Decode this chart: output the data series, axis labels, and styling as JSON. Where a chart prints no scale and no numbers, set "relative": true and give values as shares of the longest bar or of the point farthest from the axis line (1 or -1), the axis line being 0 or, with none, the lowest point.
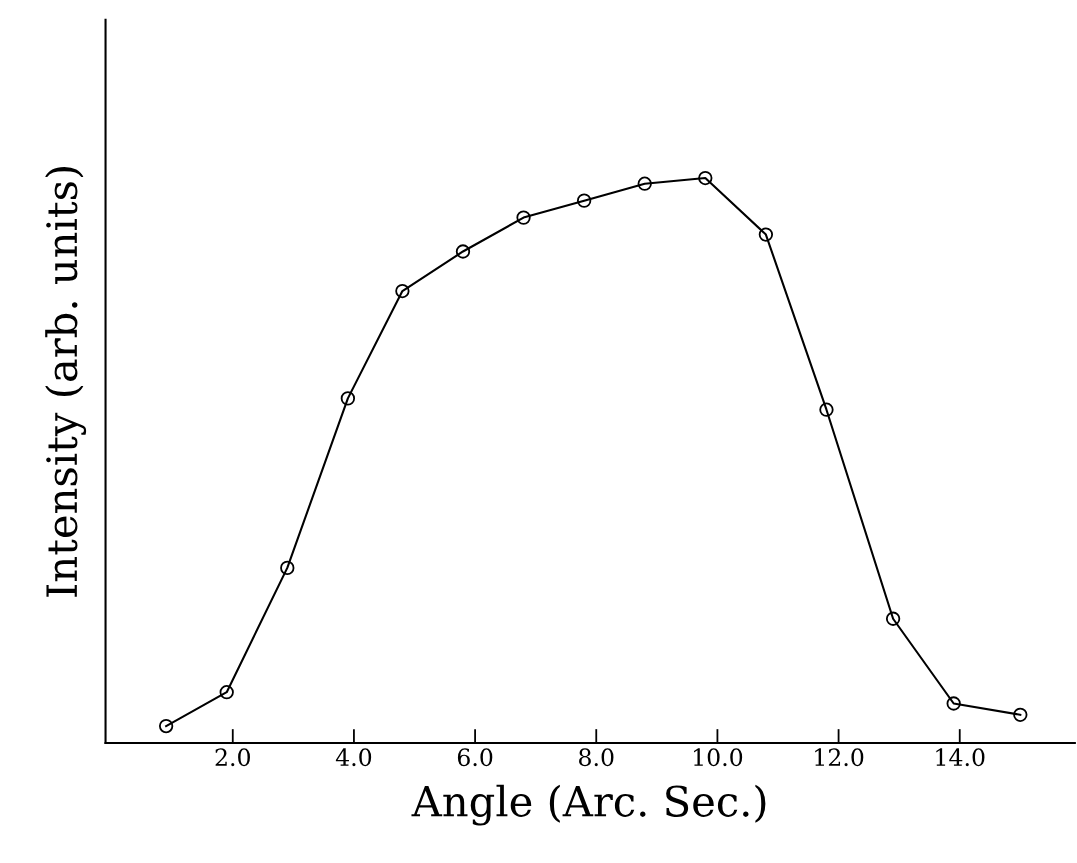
{
  "chart_data": {
    "type": "line",
    "relative": true,
    "xlabel": "Angle (Arc. Sec.)",
    "ylabel": "Intensity (arb. units)",
    "x": [
      0.9,
      1.9,
      2.9,
      3.9,
      4.8,
      5.8,
      6.8,
      7.8,
      8.8,
      9.8,
      10.8,
      11.8,
      12.9,
      13.9,
      15.0
    ],
    "series": [
      {
        "color": "#000000",
        "values": [
          0.03,
          0.09,
          0.31,
          0.61,
          0.8,
          0.87,
          0.93,
          0.96,
          0.99,
          1.0,
          0.9,
          0.59,
          0.22,
          0.07,
          0.05
        ]
      }
    ],
    "xlim": [
      -0.1,
      15.9
    ],
    "xticks": [
      {
        "value": 2,
        "label": "2.0"
      },
      {
        "value": 4,
        "label": "4.0"
      },
      {
        "value": 6,
        "label": "6.0"
      },
      {
        "value": 8,
        "label": "8.0"
      },
      {
        "value": 10,
        "label": "10.0"
      },
      {
        "value": 12,
        "label": "12.0"
      },
      {
        "value": 14,
        "label": "14.0"
      }
    ],
    "marker": "circle",
    "line_style": "solid",
    "grid": false
  }
}
